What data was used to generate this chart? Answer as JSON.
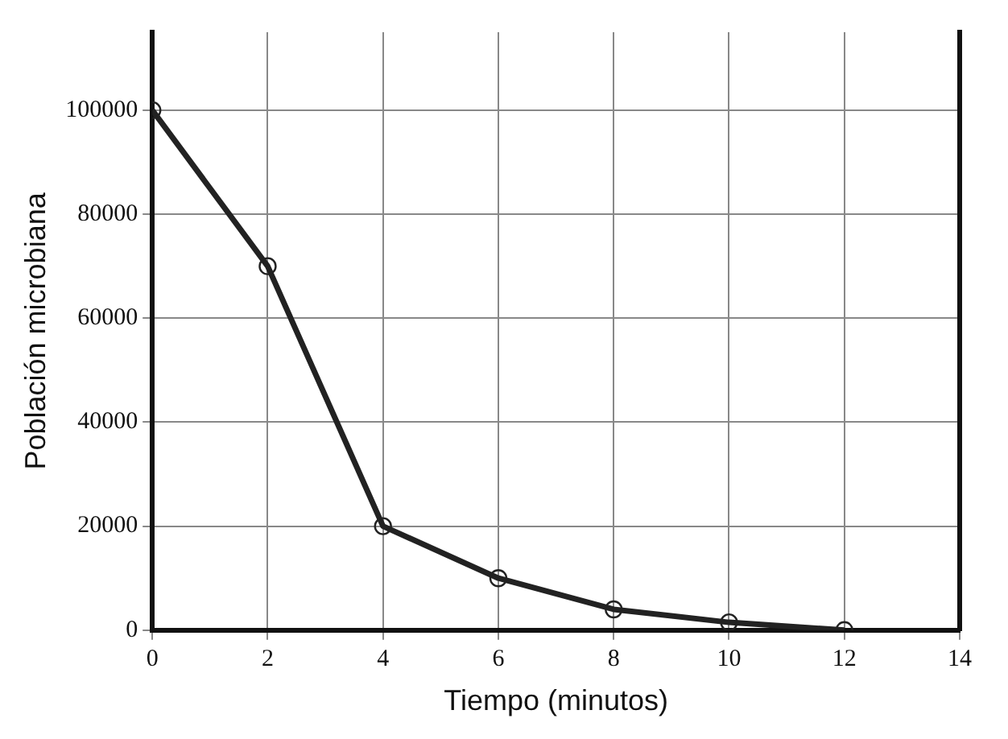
{
  "chart_data": {
    "type": "line",
    "xlabel": "Tiempo (minutos)",
    "ylabel": "Población microbiana",
    "x": [
      0,
      2,
      4,
      6,
      8,
      10,
      12
    ],
    "series": [
      {
        "color": "#222222",
        "values": [
          100000,
          70000,
          20000,
          10000,
          4000,
          1500,
          0
        ]
      }
    ],
    "xlim": [
      0,
      14
    ],
    "xticks": [
      0,
      2,
      4,
      6,
      8,
      10,
      12,
      14
    ],
    "ylim": [
      0,
      115000
    ],
    "yticks": [
      0,
      20000,
      40000,
      60000,
      80000,
      100000
    ],
    "grid": true,
    "legend": false,
    "marker": "circle",
    "line_style": "solid"
  }
}
